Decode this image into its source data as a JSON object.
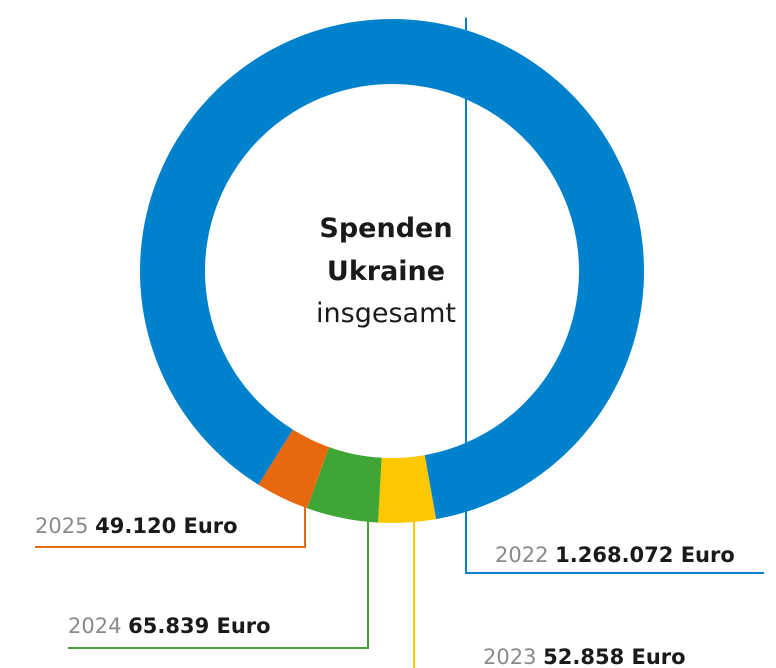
{
  "chart_data": {
    "type": "donut",
    "annotations": [
      "Spenden",
      "Ukraine",
      "insgesamt"
    ],
    "categories": [
      "2022",
      "2023",
      "2024",
      "2025"
    ],
    "values": [
      1268072,
      52858,
      65839,
      49120
    ],
    "value_labels": [
      "1.268.072 Euro",
      "52.858 Euro",
      "65.839 Euro",
      "49.120 Euro"
    ],
    "colors": [
      "#0081cb",
      "#fcc900",
      "#3fa535",
      "#e8680f"
    ]
  }
}
